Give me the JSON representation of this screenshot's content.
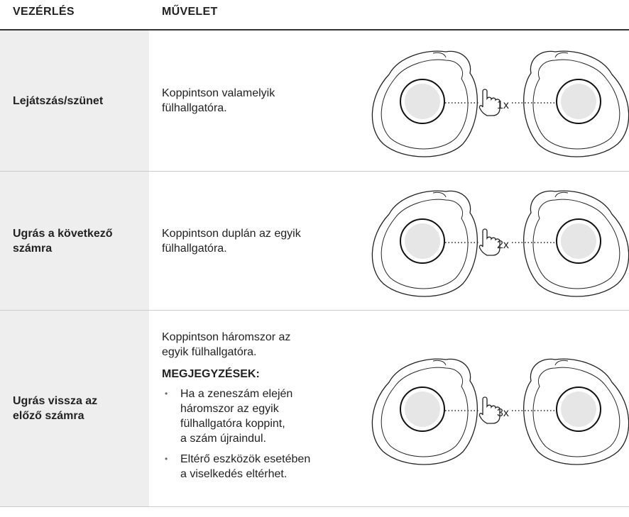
{
  "header": {
    "col1": "VEZÉRLÉS",
    "col2": "MŰVELET"
  },
  "rows": [
    {
      "control": [
        "Lejátszás/szünet"
      ],
      "action": [
        "Koppintson valamelyik",
        "fülhallgatóra."
      ],
      "count": "1x"
    },
    {
      "control": [
        "Ugrás a következő",
        "számra"
      ],
      "action": [
        "Koppintson duplán az egyik",
        "fülhallgatóra."
      ],
      "count": "2x"
    },
    {
      "control": [
        "Ugrás vissza az",
        "előző számra"
      ],
      "action": [
        "Koppintson háromszor az",
        "egyik fülhallgatóra."
      ],
      "notes_title": "MEGJEGYZÉSEK:",
      "notes": [
        [
          "Ha a zeneszám elején",
          "háromszor az egyik",
          "fülhallgatóra koppint,",
          "a szám újraindul."
        ],
        [
          "Eltérő eszközök esetében",
          "a viselkedés eltérhet."
        ]
      ],
      "count": "3x"
    }
  ]
}
